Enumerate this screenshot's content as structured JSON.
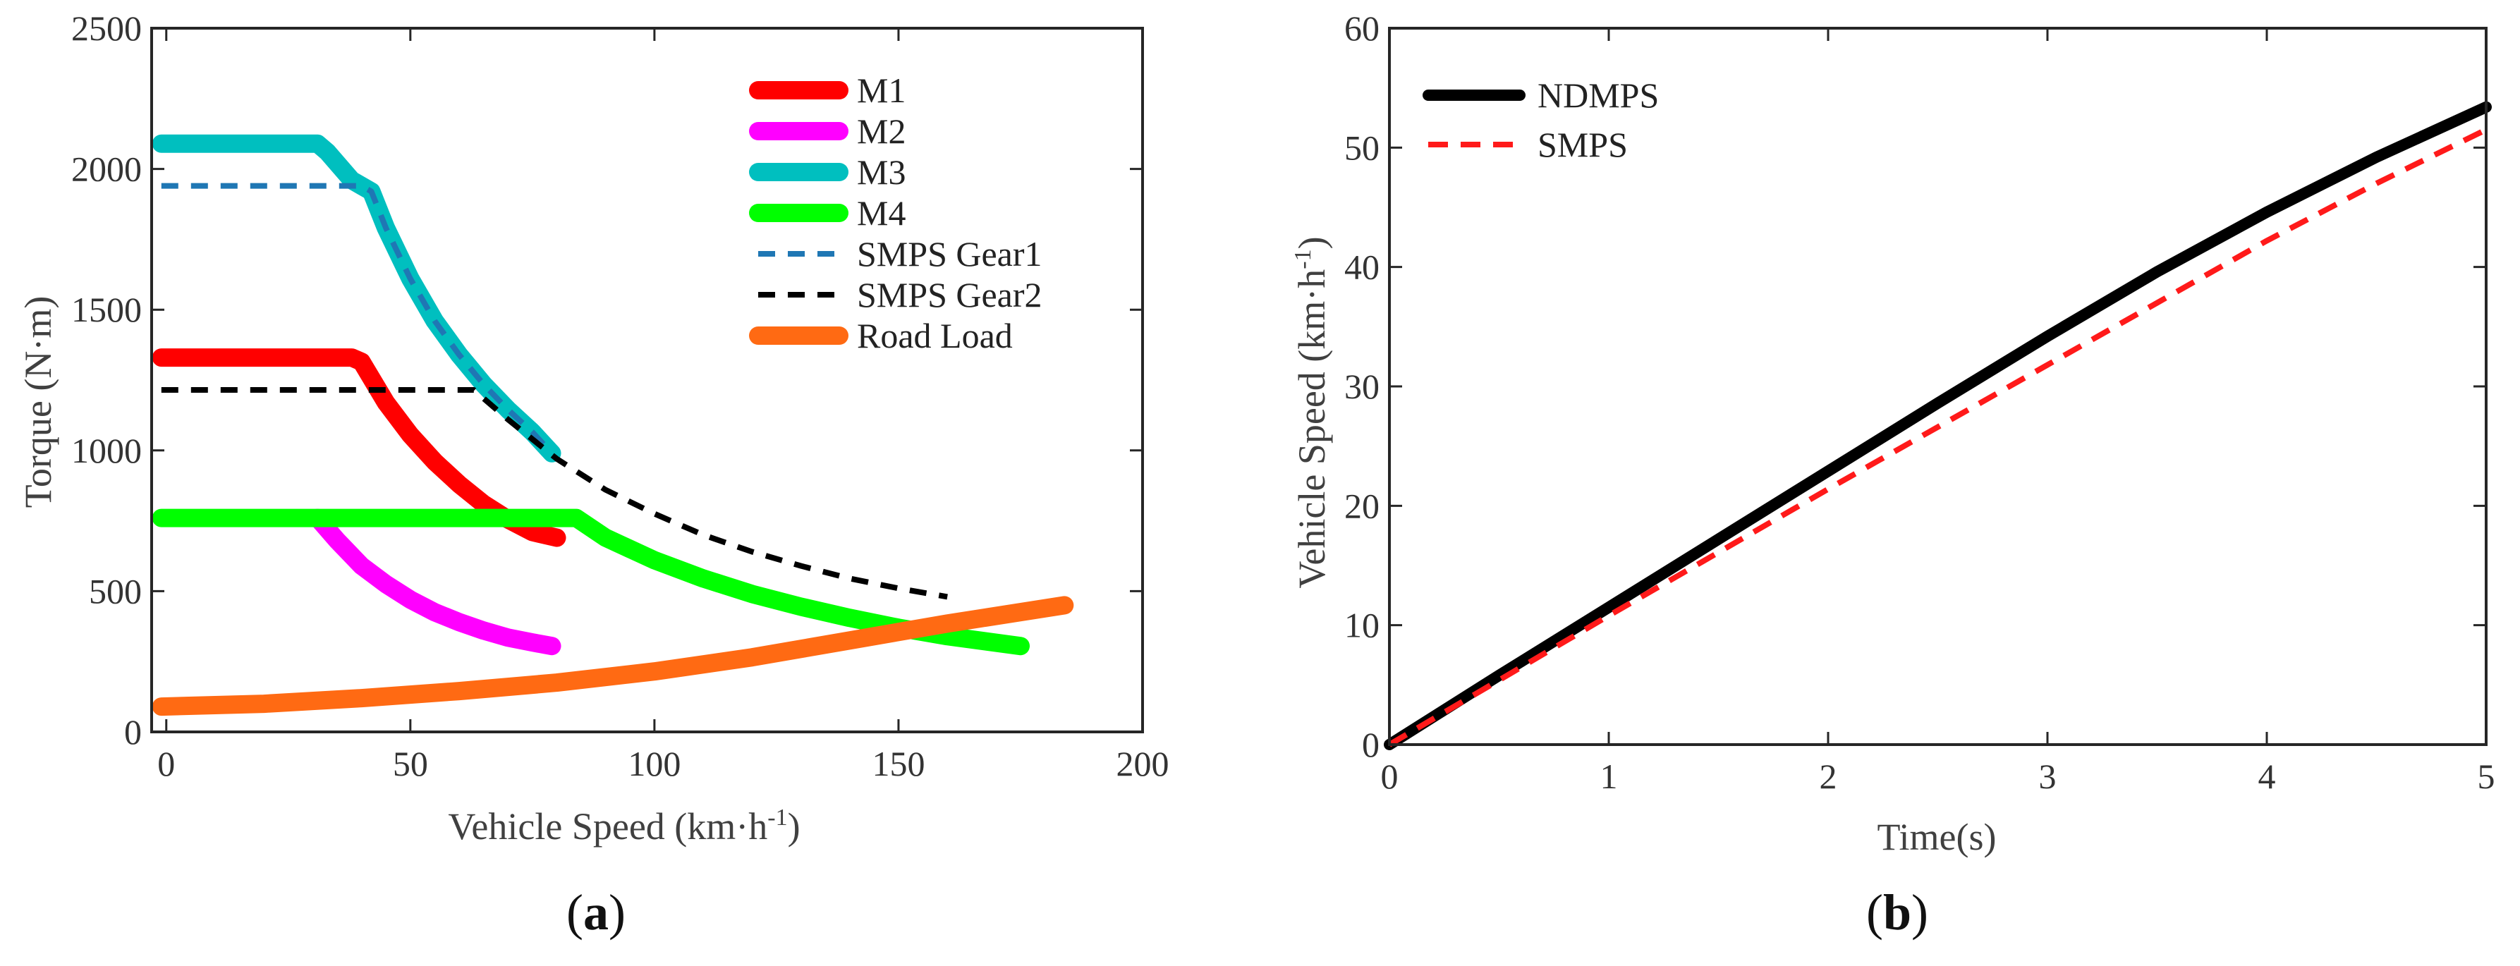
{
  "chart_data": [
    {
      "panel_label_open": "(",
      "panel_label_letter": "a",
      "panel_label_close": ")",
      "type": "line",
      "title": "",
      "xlabel": "Vehicle Speed (km·h",
      "xlabel_sup": "-1",
      "xlabel_end": ")",
      "ylabel": "Torque (N·m)",
      "xlim": [
        -3,
        200
      ],
      "ylim": [
        0,
        2500
      ],
      "xticks": [
        0,
        50,
        100,
        150,
        200
      ],
      "yticks": [
        0,
        500,
        1000,
        1500,
        2000,
        2500
      ],
      "grid": false,
      "legend_position": "top-right",
      "series": [
        {
          "name": "M1",
          "color": "#ff0000",
          "style": "thick",
          "x": [
            -1,
            10,
            20,
            30,
            38,
            40,
            45,
            50,
            55,
            60,
            65,
            70,
            75,
            80
          ],
          "y": [
            1330,
            1330,
            1330,
            1330,
            1330,
            1315,
            1170,
            1055,
            960,
            880,
            810,
            755,
            710,
            690
          ]
        },
        {
          "name": "M2",
          "color": "#ff00ff",
          "style": "thick",
          "x": [
            31,
            35,
            40,
            45,
            50,
            55,
            60,
            65,
            70,
            75,
            79
          ],
          "y": [
            760,
            680,
            590,
            525,
            470,
            425,
            390,
            360,
            335,
            318,
            305
          ]
        },
        {
          "name": "M3",
          "color": "#00bfbf",
          "style": "thick",
          "x": [
            -1,
            10,
            20,
            31,
            33,
            38,
            42,
            45,
            50,
            55,
            60,
            65,
            70,
            75,
            79
          ],
          "y": [
            2090,
            2090,
            2090,
            2090,
            2060,
            1960,
            1920,
            1790,
            1610,
            1460,
            1340,
            1235,
            1145,
            1065,
            990
          ]
        },
        {
          "name": "M4",
          "color": "#00ff00",
          "style": "thick",
          "x": [
            -1,
            20,
            40,
            60,
            84,
            90,
            100,
            110,
            120,
            130,
            140,
            150,
            160,
            175
          ],
          "y": [
            760,
            760,
            760,
            760,
            760,
            690,
            610,
            545,
            490,
            445,
            405,
            370,
            340,
            305
          ]
        },
        {
          "name": "SMPS Gear1",
          "color": "#1f77b4",
          "style": "dash",
          "x": [
            -1,
            10,
            20,
            30,
            40,
            42,
            45,
            50,
            55,
            60,
            65,
            70,
            75,
            79
          ],
          "y": [
            1940,
            1940,
            1940,
            1940,
            1940,
            1920,
            1790,
            1610,
            1460,
            1340,
            1235,
            1145,
            1065,
            990
          ]
        },
        {
          "name": "SMPS Gear2",
          "color": "#000000",
          "style": "dash",
          "x": [
            -1,
            20,
            40,
            63,
            64,
            70,
            80,
            90,
            100,
            110,
            120,
            130,
            140,
            150,
            160
          ],
          "y": [
            1215,
            1215,
            1215,
            1215,
            1200,
            1110,
            970,
            860,
            775,
            700,
            640,
            590,
            545,
            510,
            480
          ]
        },
        {
          "name": "Road Load",
          "color": "#ff6a13",
          "style": "thick",
          "x": [
            -1,
            20,
            40,
            60,
            80,
            100,
            120,
            140,
            160,
            184
          ],
          "y": [
            90,
            100,
            120,
            145,
            175,
            215,
            265,
            325,
            385,
            450
          ]
        }
      ]
    },
    {
      "panel_label_open": "(",
      "panel_label_letter": "b",
      "panel_label_close": ")",
      "type": "line",
      "title": "",
      "xlabel": "Time(s)",
      "ylabel": "Vehicle Speed (km·h",
      "ylabel_sup": "-1",
      "ylabel_end": ")",
      "xlim": [
        0,
        5
      ],
      "ylim": [
        0,
        60
      ],
      "xticks": [
        0,
        1,
        2,
        3,
        4,
        5
      ],
      "yticks": [
        0,
        10,
        20,
        30,
        40,
        50,
        60
      ],
      "grid": false,
      "legend_position": "top-left",
      "series": [
        {
          "name": "NDMPS",
          "color": "#000000",
          "style": "thick",
          "x": [
            0,
            0.5,
            1,
            1.5,
            2,
            2.5,
            3,
            3.5,
            4,
            4.5,
            5
          ],
          "y": [
            0,
            5.8,
            11.5,
            17.2,
            22.9,
            28.6,
            34.2,
            39.6,
            44.6,
            49.2,
            53.4
          ]
        },
        {
          "name": "SMPS",
          "color": "#ff1a1a",
          "style": "dash",
          "x": [
            0,
            0.5,
            1,
            1.5,
            2,
            2.5,
            3,
            3.5,
            4,
            4.5,
            5
          ],
          "y": [
            0,
            5.4,
            10.8,
            16.1,
            21.4,
            26.6,
            31.8,
            37.0,
            42.2,
            47.0,
            51.5
          ]
        }
      ]
    }
  ]
}
